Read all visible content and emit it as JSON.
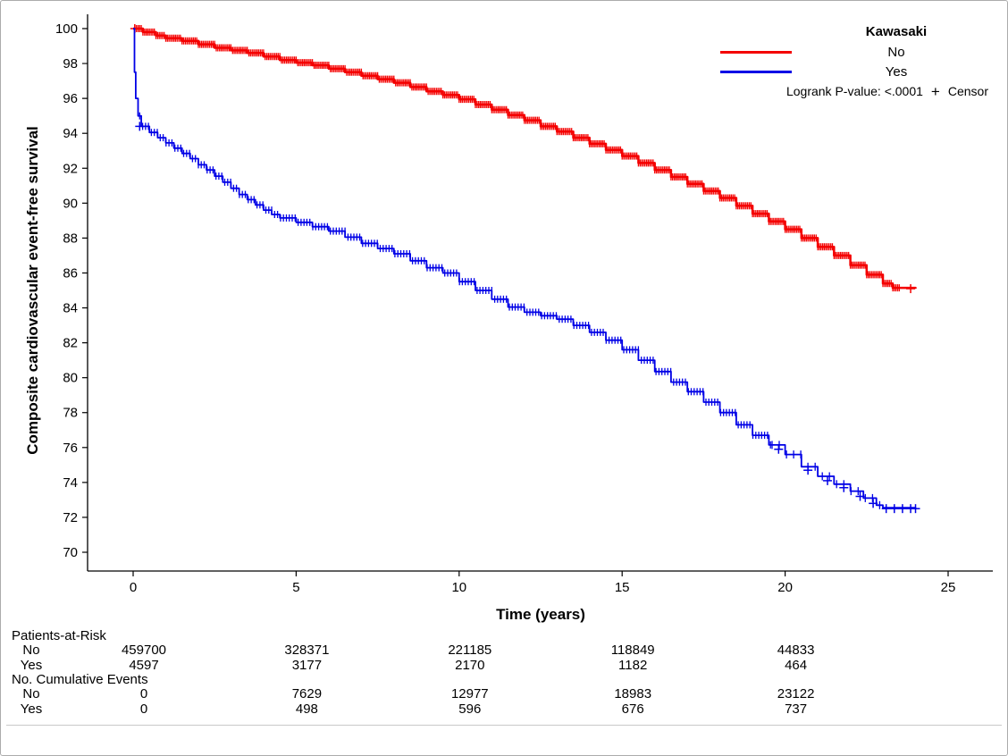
{
  "figure": {
    "ylabel": "Composite cardiovascular event-free survival",
    "xlabel": "Time (years)"
  },
  "legend": {
    "title": "Kawasaki",
    "items": [
      {
        "label": "No",
        "color": "#F40000"
      },
      {
        "label": "Yes",
        "color": "#0000E6"
      }
    ],
    "pvalue": "Logrank P-value: <.0001",
    "censor_symbol": "+",
    "censor_label": "Censor"
  },
  "chart_data": {
    "type": "line",
    "subtype": "kaplan-meier-step",
    "title": "",
    "xlabel": "Time (years)",
    "ylabel": "Composite cardiovascular event-free survival",
    "xlim": [
      0,
      25
    ],
    "ylim": [
      70,
      100
    ],
    "xticks": [
      0,
      5,
      10,
      15,
      20,
      25
    ],
    "yticks": [
      70,
      72,
      74,
      76,
      78,
      80,
      82,
      84,
      86,
      88,
      90,
      92,
      94,
      96,
      98,
      100
    ],
    "grid": false,
    "legend_position": "top-right",
    "series": [
      {
        "name": "No",
        "color": "#F40000",
        "stroke_width": 2.5,
        "points": [
          [
            0,
            100
          ],
          [
            0.3,
            99.8
          ],
          [
            0.7,
            99.6
          ],
          [
            1,
            99.45
          ],
          [
            1.5,
            99.3
          ],
          [
            2,
            99.1
          ],
          [
            2.5,
            98.9
          ],
          [
            3,
            98.75
          ],
          [
            3.5,
            98.6
          ],
          [
            4,
            98.4
          ],
          [
            4.5,
            98.2
          ],
          [
            5,
            98.05
          ],
          [
            5.5,
            97.9
          ],
          [
            6,
            97.7
          ],
          [
            6.5,
            97.5
          ],
          [
            7,
            97.3
          ],
          [
            7.5,
            97.1
          ],
          [
            8,
            96.9
          ],
          [
            8.5,
            96.65
          ],
          [
            9,
            96.4
          ],
          [
            9.5,
            96.2
          ],
          [
            10,
            95.95
          ],
          [
            10.5,
            95.65
          ],
          [
            11,
            95.35
          ],
          [
            11.5,
            95.05
          ],
          [
            12,
            94.75
          ],
          [
            12.5,
            94.4
          ],
          [
            13,
            94.1
          ],
          [
            13.5,
            93.75
          ],
          [
            14,
            93.4
          ],
          [
            14.5,
            93.05
          ],
          [
            15,
            92.7
          ],
          [
            15.5,
            92.3
          ],
          [
            16,
            91.9
          ],
          [
            16.5,
            91.5
          ],
          [
            17,
            91.1
          ],
          [
            17.5,
            90.7
          ],
          [
            18,
            90.3
          ],
          [
            18.5,
            89.85
          ],
          [
            19,
            89.4
          ],
          [
            19.5,
            88.95
          ],
          [
            20,
            88.5
          ],
          [
            20.5,
            88.0
          ],
          [
            21,
            87.5
          ],
          [
            21.5,
            87.0
          ],
          [
            22,
            86.45
          ],
          [
            22.5,
            85.9
          ],
          [
            23,
            85.4
          ],
          [
            23.3,
            85.15
          ],
          [
            24,
            85.1
          ]
        ],
        "bands": [
          {
            "from": 0.05,
            "to": 23.55,
            "step": 0.05,
            "half": 4
          }
        ],
        "censor_marks": [
          [
            0.05,
            100
          ],
          [
            23.85,
            85.1
          ]
        ]
      },
      {
        "name": "Yes",
        "color": "#0000E6",
        "stroke_width": 1.8,
        "points": [
          [
            0,
            100
          ],
          [
            0.04,
            97.5
          ],
          [
            0.08,
            96
          ],
          [
            0.15,
            95
          ],
          [
            0.25,
            94.4
          ],
          [
            0.5,
            94.05
          ],
          [
            0.75,
            93.75
          ],
          [
            1,
            93.45
          ],
          [
            1.25,
            93.15
          ],
          [
            1.5,
            92.85
          ],
          [
            1.75,
            92.55
          ],
          [
            2,
            92.2
          ],
          [
            2.25,
            91.9
          ],
          [
            2.5,
            91.55
          ],
          [
            2.75,
            91.2
          ],
          [
            3,
            90.85
          ],
          [
            3.25,
            90.5
          ],
          [
            3.5,
            90.2
          ],
          [
            3.75,
            89.9
          ],
          [
            4,
            89.6
          ],
          [
            4.25,
            89.35
          ],
          [
            4.5,
            89.15
          ],
          [
            5,
            88.9
          ],
          [
            5.5,
            88.65
          ],
          [
            6,
            88.4
          ],
          [
            6.5,
            88.05
          ],
          [
            7,
            87.7
          ],
          [
            7.5,
            87.4
          ],
          [
            8,
            87.1
          ],
          [
            8.5,
            86.7
          ],
          [
            9,
            86.3
          ],
          [
            9.5,
            86.0
          ],
          [
            10,
            85.5
          ],
          [
            10.5,
            85.0
          ],
          [
            11,
            84.5
          ],
          [
            11.5,
            84.05
          ],
          [
            12,
            83.75
          ],
          [
            12.5,
            83.55
          ],
          [
            13,
            83.35
          ],
          [
            13.5,
            83.0
          ],
          [
            14,
            82.6
          ],
          [
            14.5,
            82.15
          ],
          [
            15,
            81.6
          ],
          [
            15.5,
            81.0
          ],
          [
            16,
            80.35
          ],
          [
            16.5,
            79.75
          ],
          [
            17,
            79.2
          ],
          [
            17.5,
            78.6
          ],
          [
            18,
            78.0
          ],
          [
            18.5,
            77.3
          ],
          [
            19,
            76.7
          ],
          [
            19.5,
            76.15
          ],
          [
            20,
            75.6
          ],
          [
            20.5,
            74.9
          ],
          [
            21,
            74.35
          ],
          [
            21.5,
            73.9
          ],
          [
            22,
            73.5
          ],
          [
            22.4,
            73.1
          ],
          [
            22.8,
            72.7
          ],
          [
            23,
            72.55
          ],
          [
            24,
            72.5
          ]
        ],
        "bands": [
          {
            "from": 0.2,
            "to": 19.6,
            "step": 0.09,
            "half": 4
          },
          {
            "from": 19.6,
            "to": 22.9,
            "step": 0.22,
            "half": 4.5
          }
        ],
        "censor_marks": [
          [
            0.2,
            94.4
          ],
          [
            19.8,
            75.9
          ],
          [
            20.7,
            74.7
          ],
          [
            21.3,
            74.1
          ],
          [
            21.8,
            73.7
          ],
          [
            22.3,
            73.2
          ],
          [
            22.7,
            72.8
          ],
          [
            23.1,
            72.5
          ],
          [
            23.35,
            72.5
          ],
          [
            23.6,
            72.5
          ],
          [
            23.85,
            72.5
          ],
          [
            24,
            72.5
          ]
        ]
      }
    ]
  },
  "at_risk": {
    "title": "Patients-at-Risk",
    "times": [
      0,
      5,
      10,
      15,
      20
    ],
    "groups": [
      {
        "label": "No",
        "values": [
          "459700",
          "328371",
          "221185",
          "118849",
          "44833"
        ]
      },
      {
        "label": "Yes",
        "values": [
          "4597",
          "3177",
          "2170",
          "1182",
          "464"
        ]
      }
    ],
    "events_title": "No. Cumulative Events",
    "event_groups": [
      {
        "label": "No",
        "values": [
          "0",
          "7629",
          "12977",
          "18983",
          "23122"
        ]
      },
      {
        "label": "Yes",
        "values": [
          "0",
          "498",
          "596",
          "676",
          "737"
        ]
      }
    ]
  }
}
